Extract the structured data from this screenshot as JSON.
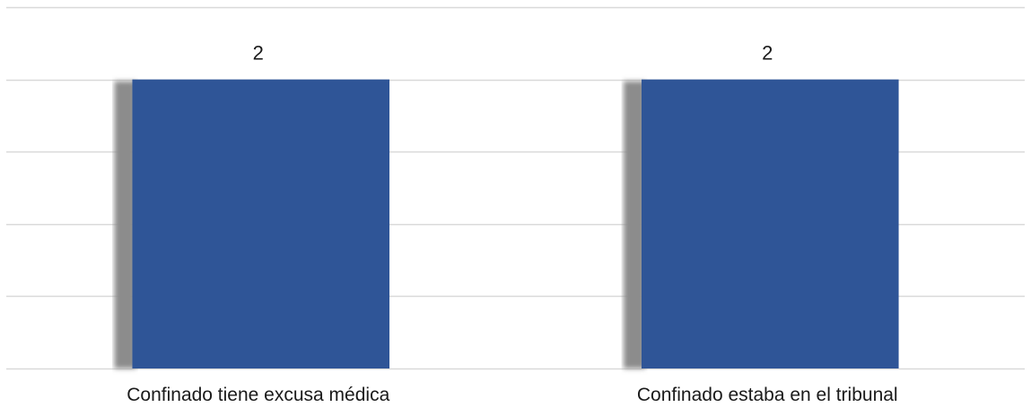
{
  "chart_data": {
    "type": "bar",
    "title": "",
    "xlabel": "",
    "ylabel": "",
    "categories": [
      "Confinado tiene excusa médica",
      "Confinado estaba en el tribunal"
    ],
    "values": [
      2,
      2
    ],
    "data_labels": [
      "2",
      "2"
    ],
    "ylim": [
      0,
      2.5
    ],
    "gridlines": [
      0,
      0.5,
      1,
      1.5,
      2,
      2.5
    ],
    "grid": true,
    "legend": "none",
    "colors": {
      "bar": "#2f5597",
      "bar_shadow": "#8c8c8c",
      "grid": "#d9d9d9"
    }
  }
}
